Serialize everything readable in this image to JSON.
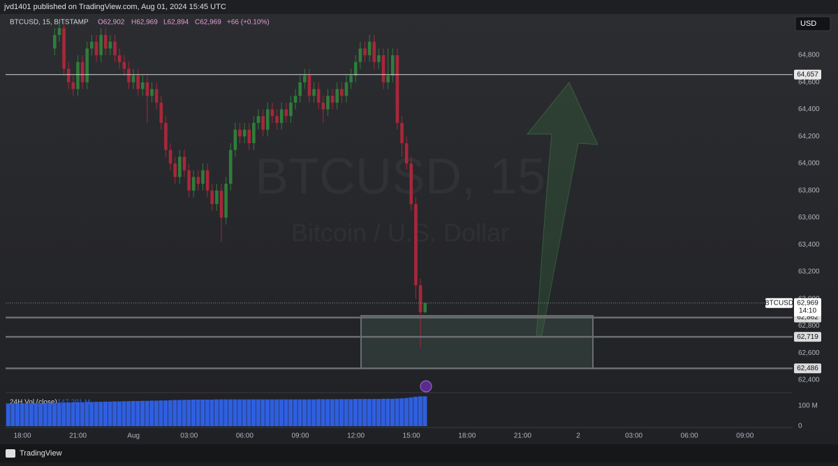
{
  "header": "jvd1401 published on TradingView.com, Aug 01, 2024 15:45 UTC",
  "footer": "TradingView",
  "currency_button": "USD",
  "chart_data": {
    "type": "candlestick",
    "legend": {
      "symbol": "BTCUSD, 15, BITSTAMP",
      "open": "O62,902",
      "high": "H62,969",
      "low": "L62,894",
      "close": "C62,969",
      "change": "+66 (+0.10%)"
    },
    "watermark": {
      "title": "BTCUSD, 15",
      "subtitle": "Bitcoin / U.S. Dollar"
    },
    "up_color": "#2f7d3a",
    "down_color": "#a8273a",
    "candles": {
      "open": [
        64850,
        64950,
        65000,
        64700,
        64600,
        64550,
        64750,
        64600,
        64850,
        64900,
        64800,
        64950,
        64850,
        64900,
        64800,
        64750,
        64700,
        64600,
        64650,
        64550,
        64600,
        64500,
        64550,
        64450,
        64300,
        64100,
        64000,
        63900,
        64050,
        63950,
        63800,
        63900,
        63850,
        63950,
        63800,
        63700,
        63800,
        63600,
        63850,
        64100,
        64250,
        64200,
        64250,
        64150,
        64300,
        64350,
        64250,
        64400,
        64350,
        64300,
        64400,
        64350,
        64450,
        64500,
        64600,
        64650,
        64500,
        64550,
        64450,
        64400,
        64500,
        64450,
        64550,
        64500,
        64600,
        64650,
        64750,
        64850,
        64800,
        64900,
        64750,
        64800,
        64600,
        64650,
        64800,
        64300,
        64150,
        64000,
        63700,
        63100,
        62902
      ],
      "high": [
        65000,
        65050,
        65050,
        64750,
        64650,
        64800,
        64800,
        64900,
        64950,
        64950,
        65000,
        65000,
        64950,
        64950,
        64850,
        64800,
        64750,
        64700,
        64700,
        64650,
        64650,
        64600,
        64600,
        64500,
        64350,
        64150,
        64050,
        64100,
        64100,
        64000,
        63950,
        63950,
        64000,
        64000,
        63850,
        63850,
        63850,
        63900,
        64150,
        64300,
        64300,
        64300,
        64300,
        64350,
        64400,
        64400,
        64450,
        64450,
        64400,
        64450,
        64450,
        64500,
        64550,
        64650,
        64700,
        64700,
        64600,
        64600,
        64500,
        64550,
        64550,
        64600,
        64600,
        64650,
        64700,
        64800,
        64900,
        64900,
        64950,
        64950,
        64850,
        64850,
        64850,
        64850,
        64850,
        64350,
        64200,
        64050,
        63750,
        63150,
        62969
      ],
      "low": [
        64800,
        64900,
        64650,
        64550,
        64500,
        64500,
        64550,
        64550,
        64800,
        64750,
        64750,
        64800,
        64800,
        64750,
        64700,
        64650,
        64550,
        64550,
        64500,
        64500,
        64300,
        64450,
        64400,
        64250,
        64050,
        63950,
        63850,
        63850,
        63900,
        63750,
        63750,
        63800,
        63800,
        63750,
        63650,
        63650,
        63420,
        63550,
        63800,
        64050,
        64150,
        64150,
        64100,
        64100,
        64250,
        64200,
        64200,
        64300,
        64250,
        64250,
        64300,
        64300,
        64400,
        64450,
        64550,
        64450,
        64450,
        64400,
        64300,
        64350,
        64400,
        64400,
        64450,
        64450,
        64550,
        64600,
        64700,
        64750,
        64750,
        64700,
        64700,
        64550,
        64550,
        64600,
        64250,
        64050,
        63950,
        63650,
        63000,
        62640,
        62894
      ],
      "close": [
        64950,
        65000,
        64700,
        64600,
        64550,
        64750,
        64600,
        64850,
        64900,
        64800,
        64950,
        64850,
        64900,
        64800,
        64750,
        64700,
        64600,
        64650,
        64550,
        64600,
        64500,
        64550,
        64450,
        64300,
        64100,
        64000,
        63900,
        64050,
        63950,
        63800,
        63900,
        63850,
        63950,
        63800,
        63700,
        63800,
        63600,
        63850,
        64100,
        64250,
        64200,
        64250,
        64150,
        64300,
        64350,
        64250,
        64400,
        64350,
        64300,
        64400,
        64350,
        64450,
        64500,
        64600,
        64650,
        64500,
        64550,
        64450,
        64400,
        64500,
        64450,
        64550,
        64500,
        64600,
        64650,
        64750,
        64850,
        64800,
        64900,
        64750,
        64800,
        64600,
        64650,
        64800,
        64300,
        64150,
        64000,
        63700,
        63100,
        62900,
        62969
      ]
    },
    "ylim": [
      62317,
      65105
    ],
    "yticks": [
      {
        "value": 62400,
        "label": "62,400"
      },
      {
        "value": 62600,
        "label": "62,600"
      },
      {
        "value": 62800,
        "label": "62,800"
      },
      {
        "value": 63000,
        "label": "63,000"
      },
      {
        "value": 63200,
        "label": "63,200"
      },
      {
        "value": 63400,
        "label": "63,400"
      },
      {
        "value": 63600,
        "label": "63,600"
      },
      {
        "value": 63800,
        "label": "63,800"
      },
      {
        "value": 64000,
        "label": "64,000"
      },
      {
        "value": 64200,
        "label": "64,200"
      },
      {
        "value": 64400,
        "label": "64,400"
      },
      {
        "value": 64600,
        "label": "64,600"
      },
      {
        "value": 64800,
        "label": "64,800"
      }
    ],
    "xticks": [
      "18:00",
      "21:00",
      "Aug",
      "03:00",
      "06:00",
      "09:00",
      "12:00",
      "15:00",
      "18:00",
      "21:00",
      "2",
      "03:00",
      "06:00",
      "09:00"
    ],
    "levels": [
      {
        "value": 64657,
        "label": "64,657"
      },
      {
        "value": 62862,
        "label": "62,862"
      },
      {
        "value": 62719,
        "label": "62,719"
      },
      {
        "value": 62486,
        "label": "62,486"
      }
    ],
    "current": {
      "value": 62969,
      "label": "62,969",
      "symbol": "BTCUSD",
      "countdown": "14:10"
    },
    "zone": {
      "top": 62875,
      "bottom": 62486
    },
    "grid": false,
    "volume": {
      "name": "24H Vol (close)",
      "last_label": "147.201 M",
      "color": "#2f5fe0",
      "values": [
        112,
        112,
        113,
        113,
        113,
        114,
        114,
        114,
        115,
        115,
        115,
        116,
        116,
        117,
        117,
        118,
        118,
        119,
        119,
        120,
        120,
        121,
        121,
        122,
        122,
        123,
        123,
        124,
        124,
        125,
        125,
        126,
        126,
        127,
        127,
        128,
        129,
        129,
        130,
        130,
        131,
        131,
        131,
        131,
        131,
        132,
        132,
        132,
        132,
        132,
        132,
        132,
        132,
        132,
        132,
        132,
        132,
        132,
        132,
        132,
        132,
        132,
        132,
        132,
        132,
        132,
        132,
        133,
        133,
        133,
        133,
        133,
        133,
        133,
        133,
        134,
        134,
        134,
        134,
        134,
        134,
        135,
        135,
        135,
        136,
        137,
        139,
        142,
        145,
        147,
        147.201
      ],
      "ylim": [
        0,
        155
      ],
      "yticks": [
        0,
        {
          "value": 100,
          "label": "100 M"
        }
      ]
    }
  }
}
